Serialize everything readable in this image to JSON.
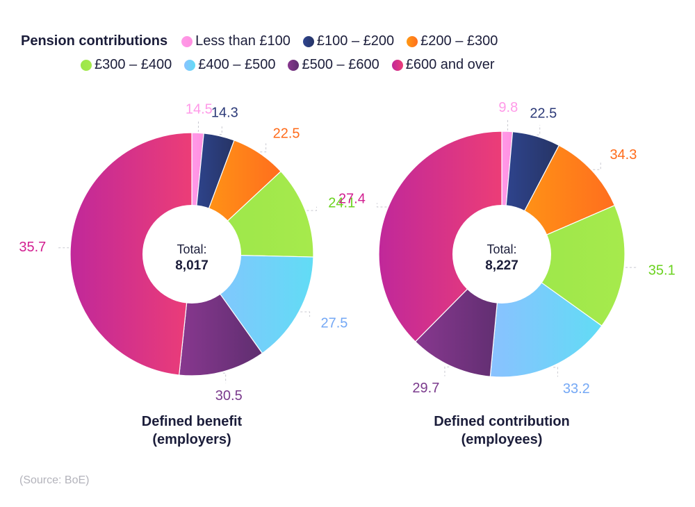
{
  "legend": {
    "title": "Pension contributions",
    "items": [
      {
        "label": "Less than £100",
        "color": "#ff99e8",
        "color2": "#ff90e0"
      },
      {
        "label": "£100 – £200",
        "color": "#2f4590",
        "color2": "#263465"
      },
      {
        "label": "£200 – £300",
        "color": "#ff9a14",
        "color2": "#ff6e1e"
      },
      {
        "label": "£300 – £400",
        "color": "#9be64a",
        "color2": "#a6ea4c"
      },
      {
        "label": "£400 – £500",
        "color": "#8ac1ff",
        "color2": "#61dcf5"
      },
      {
        "label": "£500 – £600",
        "color": "#88388f",
        "color2": "#5f2e70"
      },
      {
        "label": "£600 and over",
        "color": "#c0289a",
        "color2": "#ec3d77"
      }
    ]
  },
  "label_colors": [
    "#ff99e8",
    "#2c3a78",
    "#ff6b1a",
    "#6ad21e",
    "#74a8f5",
    "#7a3a8c",
    "#d21e90"
  ],
  "chart_data": [
    {
      "type": "pie",
      "variant": "donut",
      "title": "Defined benefit (employers)",
      "title_lines": [
        "Defined benefit",
        "(employers)"
      ],
      "center_label": "Total:",
      "center_value": "8,017",
      "categories": [
        "Less than £100",
        "£100 – £200",
        "£200 – £300",
        "£300 – £400",
        "£400 – £500",
        "£500 – £600",
        "£600 and over"
      ],
      "values": [
        14.5,
        14.3,
        22.5,
        24.1,
        27.5,
        30.5,
        35.7
      ],
      "value_labels": [
        "14.5",
        "14.3",
        "22.5",
        "24.1",
        "27.5",
        "30.5",
        "35.7"
      ],
      "slice_shares": [
        0.0157,
        0.041,
        0.074,
        0.123,
        0.148,
        0.115,
        0.4833
      ]
    },
    {
      "type": "pie",
      "variant": "donut",
      "title": "Defined contribution (employees)",
      "title_lines": [
        "Defined contribution",
        "(employees)"
      ],
      "center_label": "Total:",
      "center_value": "8,227",
      "categories": [
        "Less than £100",
        "£100 – £200",
        "£200 – £300",
        "£300 – £400",
        "£400 – £500",
        "£500 – £600",
        "£600 and over"
      ],
      "values": [
        9.8,
        22.5,
        34.3,
        35.1,
        33.2,
        29.7,
        27.4
      ],
      "value_labels": [
        "9.8",
        "22.5",
        "34.3",
        "35.1",
        "33.2",
        "29.7",
        "27.4"
      ],
      "slice_shares": [
        0.014,
        0.063,
        0.108,
        0.164,
        0.166,
        0.109,
        0.376
      ]
    }
  ],
  "source": "(Source: BoE)"
}
